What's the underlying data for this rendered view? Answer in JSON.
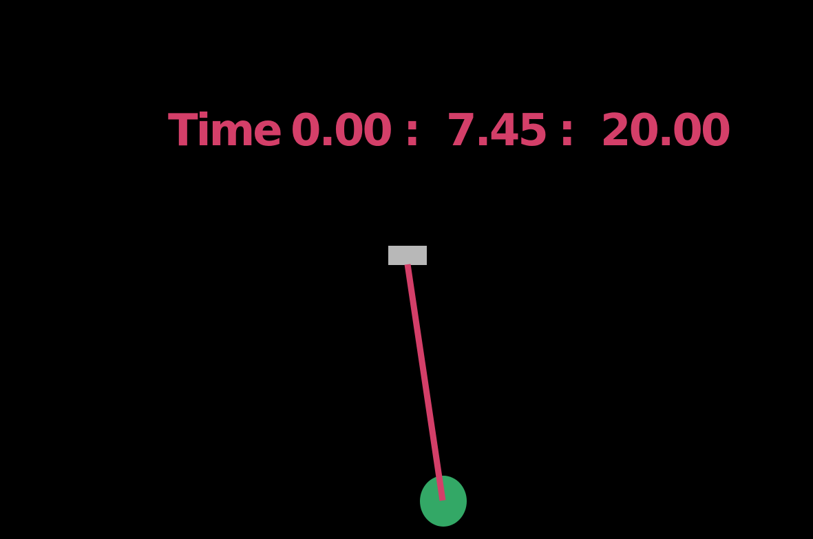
{
  "hud": {
    "label": "Time",
    "start": "0.00",
    "separator_1": ":",
    "current": "7.45",
    "separator_2": ":",
    "end": "20.00"
  },
  "pendulum": {
    "pivot_icon": "pivot-block",
    "bob_icon": "pendulum-bob"
  },
  "colors": {
    "background": "#000000",
    "text": "#d43f69",
    "rod": "#d43f69",
    "pivot": "#b8b8b8",
    "bob": "#33a866"
  }
}
